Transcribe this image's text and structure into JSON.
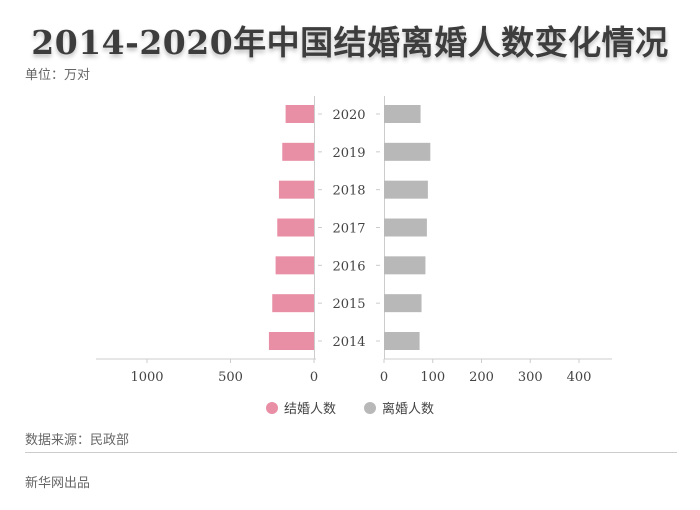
{
  "title": "2014-2020年中国结婚离婚人数变化情况",
  "unit_label": "单位：万对",
  "source_label": "数据来源：民政部",
  "credit_label": "新华网出品",
  "colors": {
    "marriage": "#e88fa6",
    "divorce": "#b8b8b8",
    "axis": "#cccccc",
    "text": "#444444"
  },
  "chart_data": {
    "type": "bar",
    "categories": [
      "2020",
      "2019",
      "2018",
      "2017",
      "2016",
      "2015",
      "2014"
    ],
    "series": [
      {
        "name": "结婚人数",
        "values": [
          170,
          190,
          210,
          220,
          230,
          250,
          270
        ]
      },
      {
        "name": "离婚人数",
        "values": [
          75,
          95,
          90,
          88,
          85,
          77,
          73
        ]
      }
    ],
    "left_axis": {
      "ticks": [
        1000,
        500,
        0
      ],
      "range": [
        0,
        1000
      ],
      "reversed": true
    },
    "right_axis": {
      "ticks": [
        0,
        100,
        200,
        300,
        400
      ],
      "range": [
        0,
        400
      ]
    },
    "legend": {
      "position": "bottom",
      "entries": [
        "结婚人数",
        "离婚人数"
      ]
    },
    "grid": false
  }
}
